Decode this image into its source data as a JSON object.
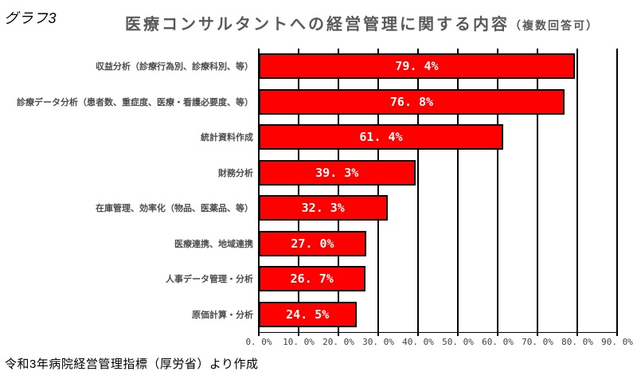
{
  "page": {
    "corner_label": "グラフ3",
    "source_note": "令和3年病院経営管理指標（厚労省）より作成"
  },
  "chart_data": {
    "type": "bar",
    "orientation": "horizontal",
    "title_main": "医療コンサルタントへの経営管理に関する内容",
    "title_suffix": "（複数回答可）",
    "categories": [
      "収益分析（診療行為別、診療科別、等）",
      "診療データ分析（患者数、重症度、医療・看護必要度、等）",
      "統計資料作成",
      "財務分析",
      "在庫管理、効率化（物品、医薬品、等）",
      "医療連携、地域連携",
      "人事データ管理・分析",
      "原価計算・分析"
    ],
    "values": [
      79.4,
      76.8,
      61.4,
      39.3,
      32.3,
      27.0,
      26.7,
      24.5
    ],
    "value_labels": [
      "79. 4%",
      "76. 8%",
      "61. 4%",
      "39. 3%",
      "32. 3%",
      "27. 0%",
      "26. 7%",
      "24. 5%"
    ],
    "xlim": [
      0,
      90
    ],
    "x_tick_step": 10,
    "x_tick_labels": [
      "0. 0%",
      "10. 0%",
      "20. 0%",
      "30. 0%",
      "40. 0%",
      "50. 0%",
      "60. 0%",
      "70. 0%",
      "80. 0%",
      "90. 0%"
    ],
    "grid": true,
    "legend": "none",
    "bar_color": "#ff0000",
    "bar_border_color": "#000000",
    "grid_color": "#000000",
    "value_label_color": "#ffffff",
    "category_label_color": "#4d4d4d",
    "axis_label_color": "#404040",
    "title_color": "#595959"
  }
}
